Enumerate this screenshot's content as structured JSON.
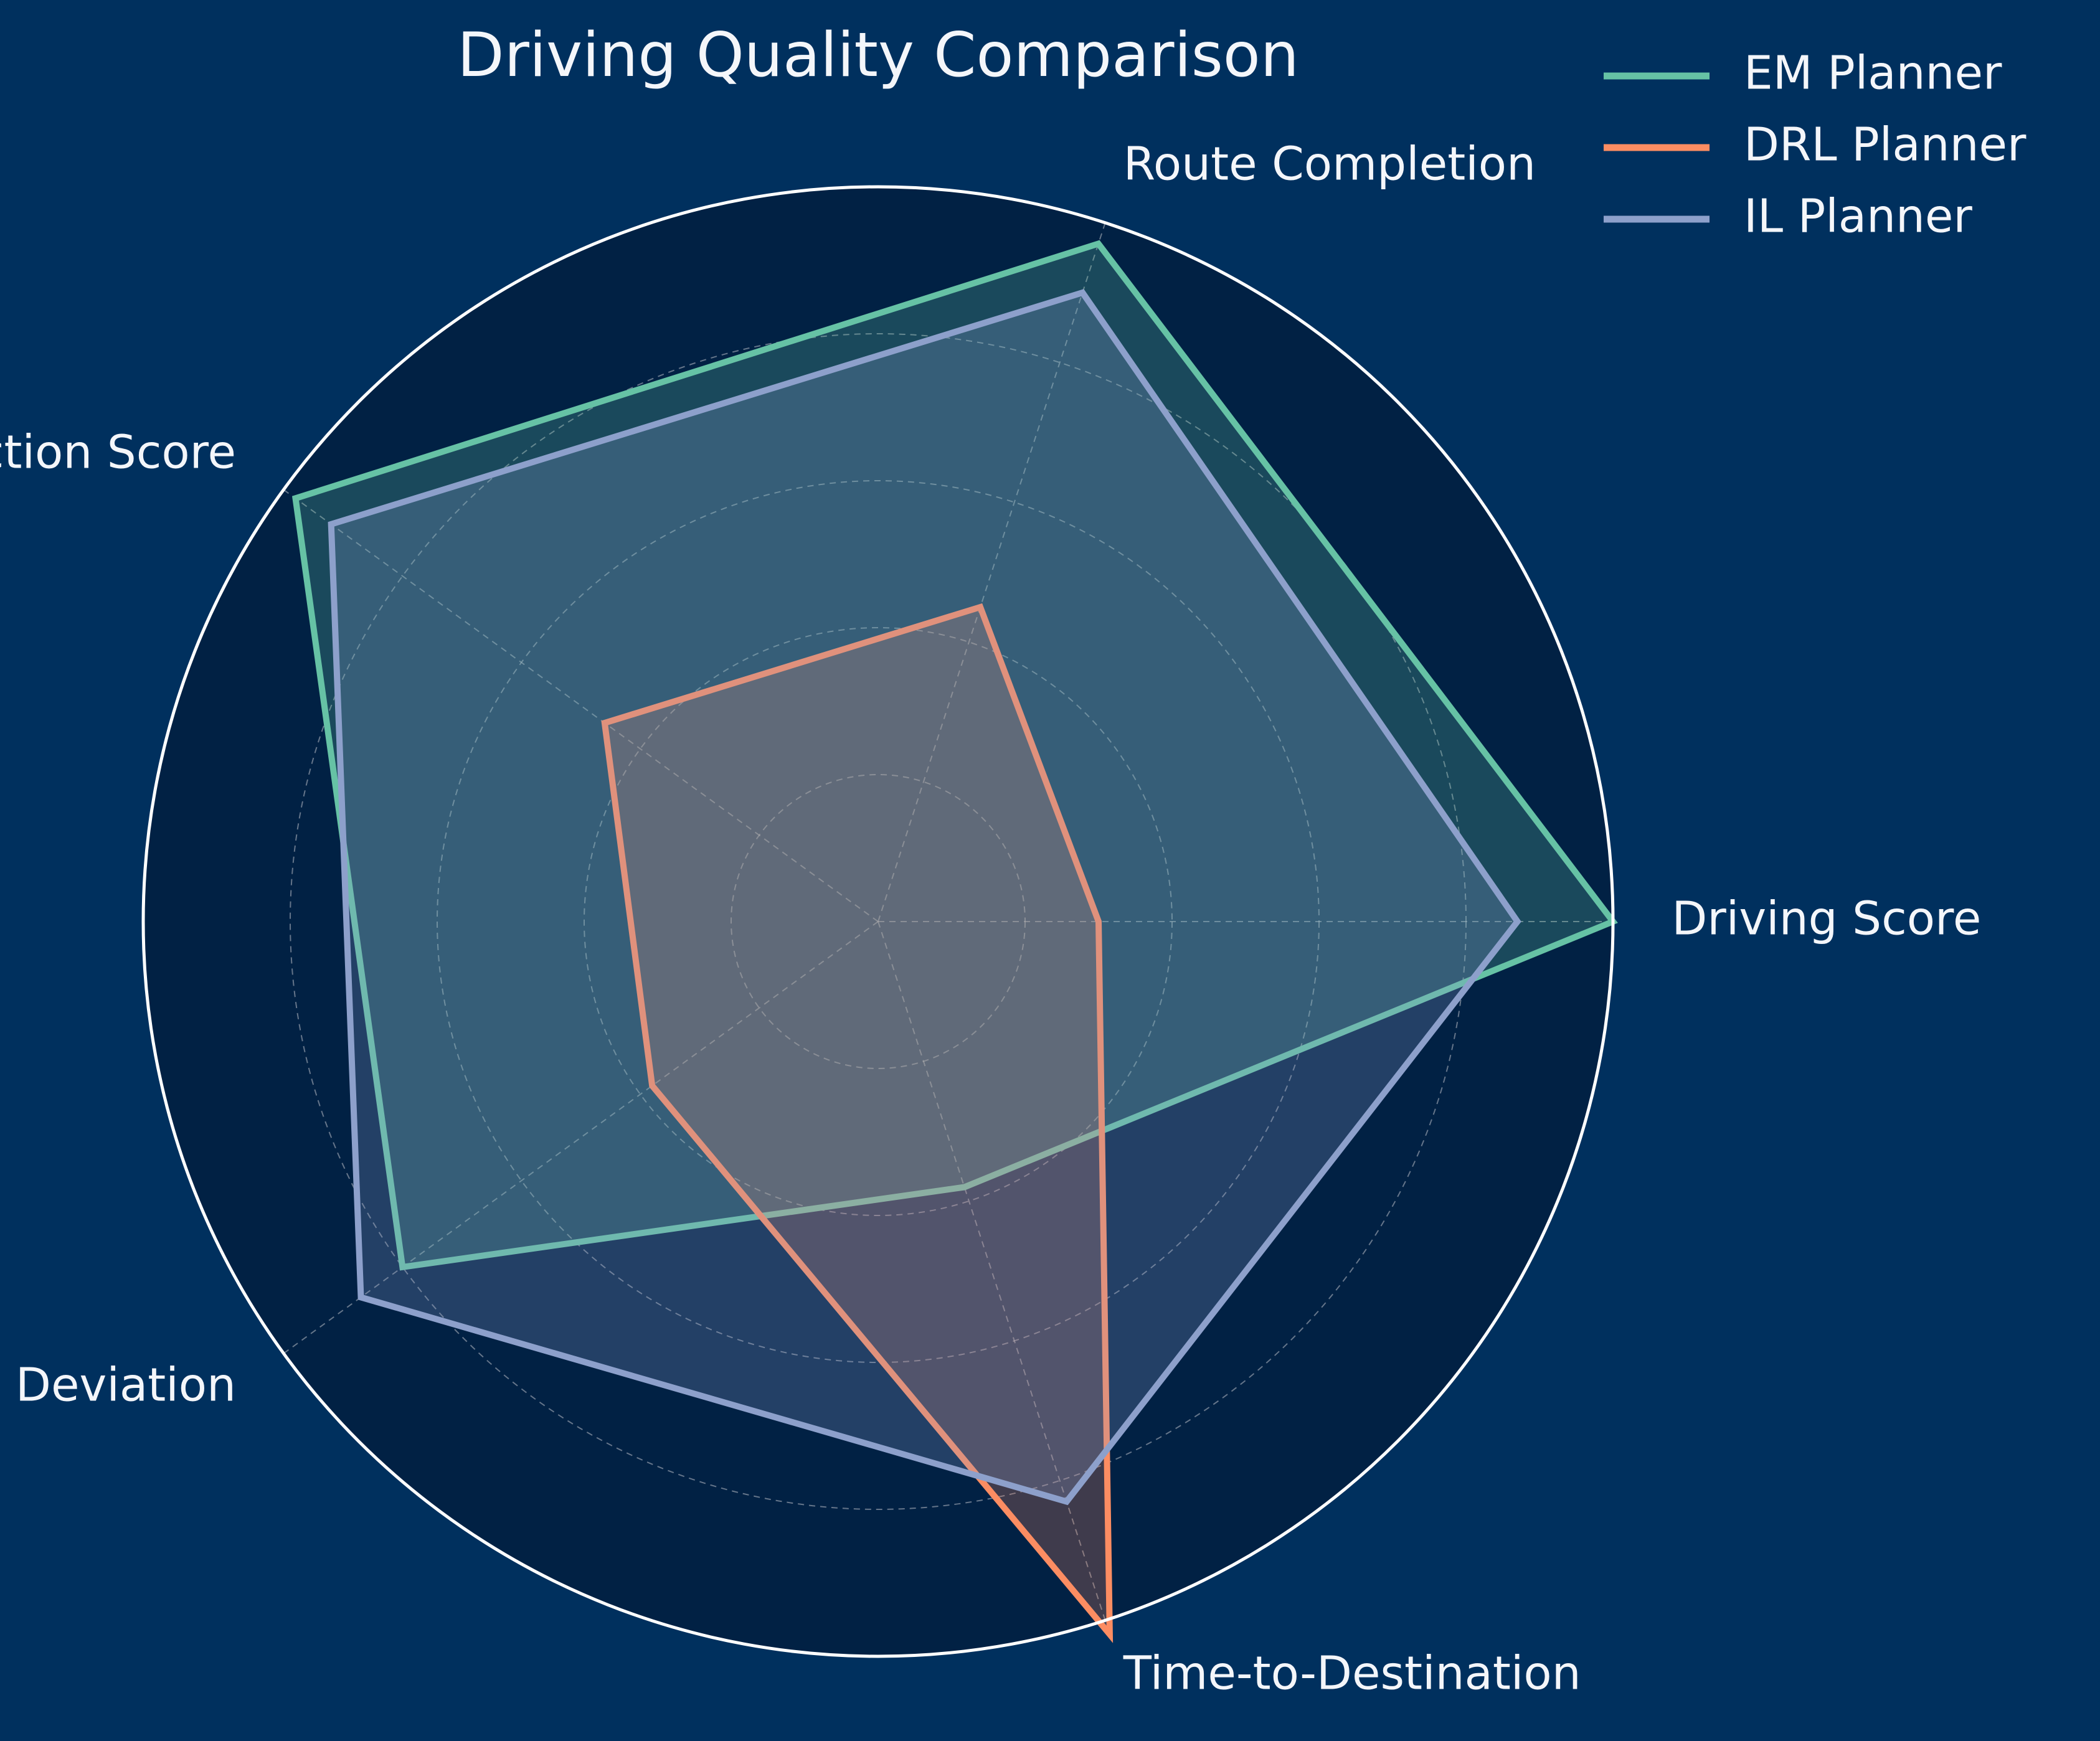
{
  "chart_data": {
    "type": "radar",
    "title": "Driving Quality Comparison",
    "axes": [
      "Driving Score",
      "Route Completion",
      "Infraction Score",
      "Deviation",
      "Time-to-Destination"
    ],
    "range": [
      0,
      1
    ],
    "ring_levels": [
      0.2,
      0.4,
      0.6,
      0.8,
      1.0
    ],
    "grid": true,
    "legend_placement": "top-right",
    "series": [
      {
        "name": "EM Planner",
        "color": "#66c2a5",
        "values": [
          1.0,
          0.97,
          0.98,
          0.8,
          0.38
        ]
      },
      {
        "name": "DRL Planner",
        "color": "#fc8d62",
        "values": [
          0.3,
          0.45,
          0.46,
          0.38,
          1.02
        ]
      },
      {
        "name": "IL Planner",
        "color": "#8da0cb",
        "values": [
          0.87,
          0.9,
          0.92,
          0.87,
          0.83
        ]
      }
    ]
  },
  "colors": {
    "background": "#00305e",
    "polar_background": "#012144",
    "frame": "#ffffff",
    "grid": "#b8bcc4"
  }
}
